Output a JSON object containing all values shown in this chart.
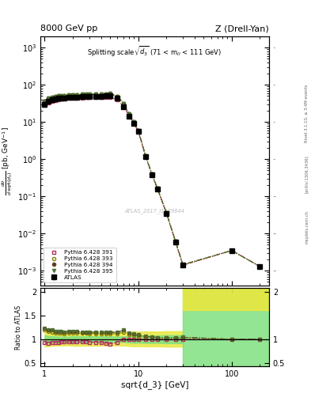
{
  "title_left": "8000 GeV pp",
  "title_right": "Z (Drell-Yan)",
  "annotation": "Splitting scale $\\sqrt{\\overline{d_3}}$ (71 < m$_{ll}$ < 111 GeV)",
  "watermark": "ATLAS_2017_I1589844",
  "ylabel_main": "d$\\sigma$/dsqrt($d_3$) [pb, GeV$^{-1}$]",
  "ylabel_ratio": "Ratio to ATLAS",
  "xlabel": "sqrt{d_3} [GeV]",
  "right_label1": "Rivet 3.1.10, ≥ 3.4M events",
  "right_label2": "[arXiv:1306.3436]",
  "right_label3": "mcplots.cern.ch",
  "x": [
    1.0,
    1.1,
    1.2,
    1.3,
    1.4,
    1.5,
    1.6,
    1.8,
    2.0,
    2.2,
    2.5,
    2.8,
    3.0,
    3.5,
    4.0,
    4.5,
    5.0,
    6.0,
    7.0,
    8.0,
    9.0,
    10.0,
    12.0,
    14.0,
    16.0,
    20.0,
    25.0,
    30.0,
    100.0,
    200.0
  ],
  "atlas_y": [
    30.0,
    36.0,
    39.0,
    41.5,
    43.0,
    44.0,
    44.5,
    45.5,
    46.5,
    47.0,
    47.5,
    48.0,
    48.5,
    49.0,
    49.5,
    50.0,
    50.5,
    43.0,
    26.0,
    14.5,
    9.0,
    5.5,
    1.15,
    0.38,
    0.16,
    0.035,
    0.006,
    0.0014,
    0.0035,
    0.0013
  ],
  "atlas_yerr_lo": [
    2.5,
    2.5,
    2.5,
    2.5,
    2.5,
    2.5,
    2.5,
    2.5,
    3.0,
    3.0,
    3.0,
    3.0,
    3.0,
    3.0,
    3.0,
    3.0,
    3.0,
    2.5,
    1.5,
    1.0,
    0.7,
    0.4,
    0.09,
    0.03,
    0.012,
    0.003,
    0.0005,
    0.00012,
    0.0003,
    0.00015
  ],
  "atlas_yerr_hi": [
    2.5,
    2.5,
    2.5,
    2.5,
    2.5,
    2.5,
    2.5,
    2.5,
    3.0,
    3.0,
    3.0,
    3.0,
    3.0,
    3.0,
    3.0,
    3.0,
    3.0,
    2.5,
    1.5,
    1.0,
    0.7,
    0.4,
    0.09,
    0.03,
    0.012,
    0.003,
    0.0005,
    0.00012,
    0.0003,
    0.00015
  ],
  "py391_y": [
    28.0,
    33.0,
    36.0,
    38.5,
    40.0,
    41.5,
    42.0,
    43.0,
    44.0,
    44.5,
    45.0,
    45.5,
    45.5,
    46.0,
    46.0,
    46.0,
    45.5,
    40.0,
    26.0,
    14.5,
    9.0,
    5.5,
    1.15,
    0.38,
    0.16,
    0.035,
    0.006,
    0.0014,
    0.0035,
    0.0013
  ],
  "py393_y": [
    36.0,
    42.0,
    45.0,
    47.0,
    48.5,
    49.5,
    50.0,
    51.5,
    52.5,
    53.0,
    53.5,
    54.0,
    54.5,
    55.0,
    55.5,
    56.0,
    56.5,
    48.0,
    30.0,
    16.0,
    9.8,
    5.9,
    1.2,
    0.4,
    0.165,
    0.036,
    0.0062,
    0.00145,
    0.0035,
    0.0013
  ],
  "py394_y": [
    37.0,
    43.0,
    46.5,
    48.5,
    50.0,
    51.0,
    51.5,
    53.0,
    54.0,
    54.5,
    55.0,
    55.5,
    56.0,
    56.5,
    57.0,
    57.5,
    58.0,
    49.5,
    31.0,
    16.5,
    10.0,
    6.0,
    1.22,
    0.4,
    0.166,
    0.036,
    0.0062,
    0.00146,
    0.0035,
    0.0013
  ],
  "py395_y": [
    37.0,
    43.0,
    46.5,
    48.5,
    50.0,
    51.0,
    51.5,
    53.0,
    54.0,
    54.5,
    55.0,
    55.5,
    56.0,
    56.5,
    57.0,
    57.5,
    58.0,
    49.5,
    31.0,
    16.5,
    10.0,
    6.0,
    1.22,
    0.4,
    0.166,
    0.036,
    0.0062,
    0.00146,
    0.0035,
    0.0013
  ],
  "xlim": [
    0.9,
    250.0
  ],
  "ylim_main": [
    0.0004,
    2000.0
  ],
  "ylim_ratio": [
    0.42,
    2.1
  ],
  "ratio_yticks": [
    0.5,
    1.0,
    1.5,
    2.0
  ],
  "color_atlas": "#000000",
  "color_py391": "#b03060",
  "color_py393": "#808000",
  "color_py394": "#604020",
  "color_py395": "#507030",
  "band_green": "#80e080",
  "band_yellow": "#e8e840",
  "x_break": 30.0
}
